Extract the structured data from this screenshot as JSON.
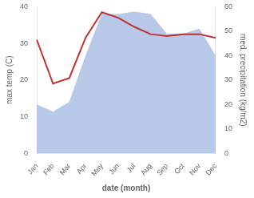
{
  "chart_data": {
    "type": "line",
    "categories": [
      "Jan",
      "Feb",
      "Mar",
      "Apr",
      "May",
      "Jun",
      "Jul",
      "Aug",
      "Sep",
      "Oct",
      "Nov",
      "Dec"
    ],
    "xlabel": "date (month)",
    "ylabel": "max temp (C)",
    "y2label": "med. precipitation (kg/m2)",
    "series": [
      {
        "type": "line",
        "color": "#c03030",
        "values": [
          31.0,
          19.0,
          20.5,
          31.5,
          38.5,
          37.0,
          34.5,
          32.5,
          32.0,
          32.5,
          32.5,
          31.5
        ]
      },
      {
        "type": "area",
        "color": "#b8c8e8",
        "axis": "y2",
        "values": [
          20,
          17,
          21,
          40,
          57,
          57,
          58,
          57,
          49,
          49,
          51,
          40
        ]
      }
    ],
    "ylim": [
      0,
      40
    ],
    "yticks": [
      0,
      10,
      20,
      30,
      40
    ],
    "y2lim": [
      0,
      60
    ],
    "y2ticks": [
      0,
      10,
      20,
      30,
      40,
      50,
      60
    ],
    "grid": false
  }
}
